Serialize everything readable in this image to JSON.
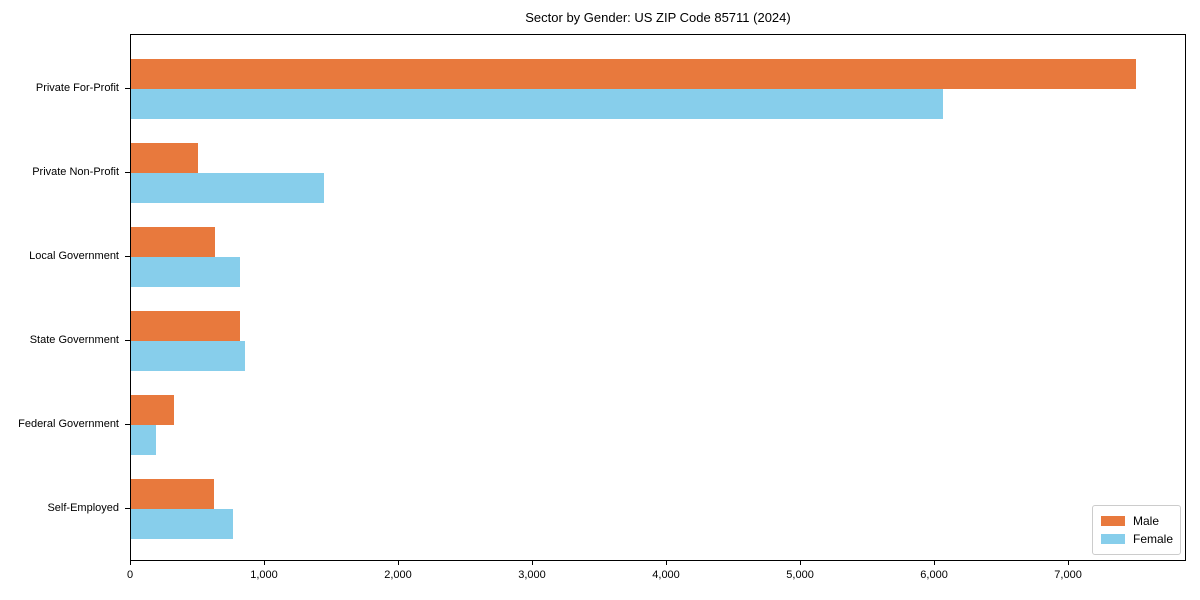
{
  "title": "Sector by Gender: US ZIP Code 85711 (2024)",
  "colors": {
    "male": "#e8793d",
    "female": "#87ceeb",
    "spine": "#000000",
    "legend_border": "#cccccc",
    "background": "#ffffff"
  },
  "legend": {
    "position": "lower right",
    "items": [
      {
        "label": "Male",
        "color": "#e8793d"
      },
      {
        "label": "Female",
        "color": "#87ceeb"
      }
    ]
  },
  "chart_data": {
    "type": "bar",
    "orientation": "horizontal",
    "title": "Sector by Gender: US ZIP Code 85711 (2024)",
    "categories": [
      "Private For-Profit",
      "Private Non-Profit",
      "Local Government",
      "State Government",
      "Federal Government",
      "Self-Employed"
    ],
    "series": [
      {
        "name": "Male",
        "color": "#e8793d",
        "values": [
          7500,
          500,
          630,
          810,
          320,
          620
        ]
      },
      {
        "name": "Female",
        "color": "#87ceeb",
        "values": [
          6060,
          1440,
          810,
          850,
          190,
          760
        ]
      }
    ],
    "xlabel": "",
    "ylabel": "",
    "xlim": [
      0,
      7880
    ],
    "xticks": [
      0,
      1000,
      2000,
      3000,
      4000,
      5000,
      6000,
      7000
    ],
    "xtick_labels": [
      "0",
      "1,000",
      "2,000",
      "3,000",
      "4,000",
      "5,000",
      "6,000",
      "7,000"
    ],
    "grid": false,
    "legend_position": "lower right"
  }
}
